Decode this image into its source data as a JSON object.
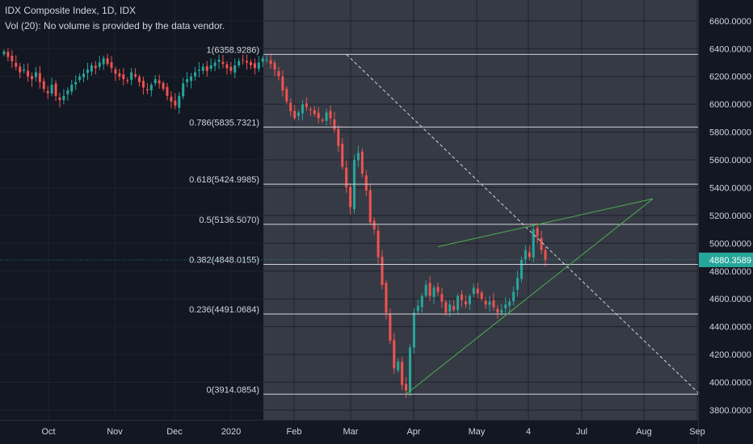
{
  "header": {
    "symbol": "IDX Composite Index, 1D, IDX",
    "volume_note": "Vol (20): No volume is provided by the data vendor."
  },
  "colors": {
    "background": "#131722",
    "fib_zone": "#363a45",
    "up": "#26a69a",
    "down": "#ef5350",
    "fib_line": "#d1d4dc",
    "trend": "#4caf50",
    "price_tag": "#26a69a",
    "axis_text": "#d1d4dc"
  },
  "chart_data": {
    "type": "candlestick",
    "title": "IDX Composite Index, 1D, IDX",
    "y_axis": {
      "ticks": [
        "6600.0000",
        "6400.0000",
        "6200.0000",
        "6000.0000",
        "5800.0000",
        "5600.0000",
        "5400.0000",
        "5200.0000",
        "5000.0000",
        "4800.0000",
        "4600.0000",
        "4400.0000",
        "4200.0000",
        "4000.0000",
        "3800.0000"
      ],
      "ylim": [
        3730,
        6750
      ]
    },
    "x_axis": {
      "ticks": [
        "Oct",
        "Nov",
        "Dec",
        "2020",
        "Feb",
        "Mar",
        "Apr",
        "May",
        "4",
        "Jul",
        "Aug",
        "Sep"
      ]
    },
    "last_price": "4880.3589",
    "fib_levels": [
      {
        "label": "1(6358.9286)",
        "value": 6358.9286
      },
      {
        "label": "0.786(5835.7321)",
        "value": 5835.7321
      },
      {
        "label": "0.618(5424.9985)",
        "value": 5424.9985
      },
      {
        "label": "0.5(5136.5070)",
        "value": 5136.507
      },
      {
        "label": "0.382(4848.0155)",
        "value": 4848.0155
      },
      {
        "label": "0.236(4491.0684)",
        "value": 4491.0684
      },
      {
        "label": "0(3914.0854)",
        "value": 3914.0854
      }
    ],
    "closes": [
      6380,
      6340,
      6310,
      6270,
      6230,
      6250,
      6200,
      6180,
      6230,
      6160,
      6110,
      6080,
      6140,
      6060,
      6030,
      6060,
      6100,
      6140,
      6160,
      6200,
      6220,
      6250,
      6280,
      6260,
      6300,
      6330,
      6290,
      6260,
      6220,
      6200,
      6180,
      6170,
      6230,
      6200,
      6160,
      6120,
      6100,
      6140,
      6180,
      6150,
      6110,
      6060,
      6020,
      5990,
      6060,
      6150,
      6180,
      6200,
      6230,
      6250,
      6270,
      6240,
      6280,
      6300,
      6320,
      6290,
      6260,
      6240,
      6280,
      6310,
      6320,
      6300,
      6280,
      6260,
      6300,
      6330,
      6320,
      6290,
      6250,
      6200,
      6100,
      6020,
      5950,
      5900,
      5940,
      6000,
      5980,
      5960,
      5930,
      5900,
      5880,
      5940,
      5900,
      5820,
      5700,
      5550,
      5400,
      5260,
      5600,
      5650,
      5500,
      5380,
      5150,
      5100,
      4900,
      4700,
      4500,
      4300,
      4100,
      4150,
      3980,
      3940,
      4250,
      4500,
      4550,
      4620,
      4700,
      4620,
      4680,
      4650,
      4580,
      4500,
      4560,
      4520,
      4620,
      4590,
      4560,
      4620,
      4680,
      4640,
      4600,
      4560,
      4580,
      4540,
      4500,
      4520,
      4560,
      4580,
      4650,
      4750,
      4880,
      4950,
      4900,
      5100,
      5050,
      4950,
      4880
    ]
  }
}
